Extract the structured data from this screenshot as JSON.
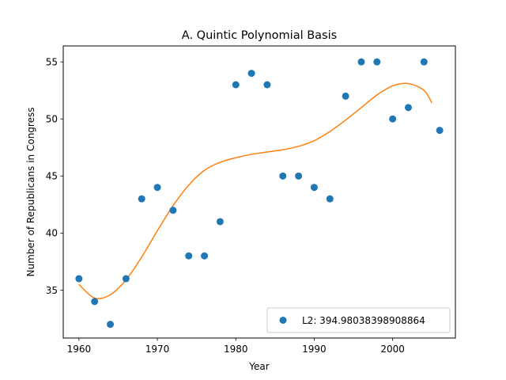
{
  "chart_data": {
    "type": "scatter",
    "title": "A. Quintic Polynomial Basis",
    "xlabel": "Year",
    "ylabel": "Number of Republicans in Congress",
    "xlim": [
      1958,
      2008
    ],
    "ylim": [
      30.8,
      56.4
    ],
    "xticks": [
      1960,
      1970,
      1980,
      1990,
      2000
    ],
    "yticks": [
      35,
      40,
      45,
      50,
      55
    ],
    "grid": false,
    "legend_position": "lower-right",
    "series": [
      {
        "name": "L2: 394.98038398908864",
        "type": "scatter",
        "color": "#1f77b4",
        "x": [
          1960,
          1962,
          1964,
          1966,
          1968,
          1970,
          1972,
          1974,
          1976,
          1978,
          1980,
          1982,
          1984,
          1986,
          1988,
          1990,
          1992,
          1994,
          1996,
          1998,
          2000,
          2002,
          2004,
          2006
        ],
        "y": [
          36,
          34,
          32,
          36,
          43,
          44,
          42,
          38,
          38,
          41,
          53,
          54,
          53,
          45,
          45,
          44,
          43,
          52,
          55,
          55,
          50,
          51,
          55,
          49
        ]
      },
      {
        "type": "line",
        "color": "#ff7f0e",
        "x": [
          1960,
          1962,
          1964,
          1966,
          1968,
          1970,
          1972,
          1974,
          1976,
          1978,
          1980,
          1982,
          1984,
          1986,
          1988,
          1990,
          1992,
          1994,
          1996,
          1998,
          2000,
          2002,
          2004,
          2005
        ],
        "y": [
          35.5,
          34.3,
          34.6,
          35.9,
          37.9,
          40.2,
          42.4,
          44.2,
          45.5,
          46.2,
          46.6,
          46.9,
          47.1,
          47.3,
          47.6,
          48.1,
          48.9,
          49.9,
          51.0,
          52.1,
          52.9,
          53.1,
          52.5,
          51.4
        ]
      }
    ]
  }
}
